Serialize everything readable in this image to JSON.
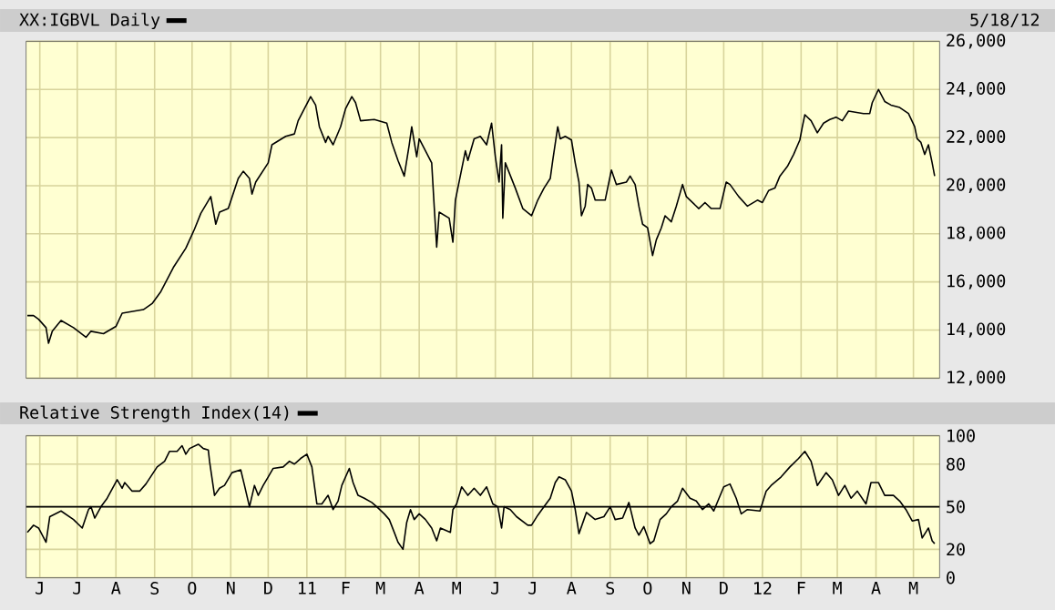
{
  "chart_data": [
    {
      "type": "line",
      "series": [
        {
          "name": "XX:IGBVL Daily",
          "color": "#000000",
          "x": [
            "2010-05-22",
            "2010-05-27",
            "2010-05-31",
            "2010-06-06",
            "2010-06-08",
            "2010-06-11",
            "2010-06-18",
            "2010-06-28",
            "2010-07-08",
            "2010-07-12",
            "2010-07-22",
            "2010-08-01",
            "2010-08-06",
            "2010-08-23",
            "2010-08-30",
            "2010-09-06",
            "2010-09-16",
            "2010-09-26",
            "2010-10-03",
            "2010-10-08",
            "2010-10-16",
            "2010-10-20",
            "2010-10-23",
            "2010-10-30",
            "2010-11-07",
            "2010-11-11",
            "2010-11-16",
            "2010-11-18",
            "2010-11-21",
            "2010-12-01",
            "2010-12-04",
            "2010-12-15",
            "2010-12-22",
            "2010-12-25",
            "2011-01-04",
            "2011-01-08",
            "2011-01-11",
            "2011-01-16",
            "2011-01-18",
            "2011-01-22",
            "2011-01-28",
            "2011-02-01",
            "2011-02-06",
            "2011-02-09",
            "2011-02-13",
            "2011-02-24",
            "2011-03-06",
            "2011-03-10",
            "2011-03-15",
            "2011-03-20",
            "2011-03-24",
            "2011-03-26",
            "2011-03-30",
            "2011-04-01",
            "2011-04-11",
            "2011-04-13",
            "2011-04-15",
            "2011-04-17",
            "2011-04-25",
            "2011-04-28",
            "2011-04-30",
            "2011-05-08",
            "2011-05-10",
            "2011-05-15",
            "2011-05-20",
            "2011-05-25",
            "2011-05-29",
            "2011-06-01",
            "2011-06-04",
            "2011-06-06",
            "2011-06-07",
            "2011-06-09",
            "2011-06-17",
            "2011-06-23",
            "2011-06-30",
            "2011-07-05",
            "2011-07-10",
            "2011-07-15",
            "2011-07-17",
            "2011-07-21",
            "2011-07-23",
            "2011-07-27",
            "2011-08-01",
            "2011-08-04",
            "2011-08-07",
            "2011-08-09",
            "2011-08-12",
            "2011-08-14",
            "2011-08-17",
            "2011-08-20",
            "2011-08-28",
            "2011-09-02",
            "2011-09-06",
            "2011-09-14",
            "2011-09-17",
            "2011-09-21",
            "2011-09-24",
            "2011-09-27",
            "2011-10-01",
            "2011-10-05",
            "2011-10-08",
            "2011-10-12",
            "2011-10-15",
            "2011-10-20",
            "2011-10-24",
            "2011-10-29",
            "2011-11-01",
            "2011-11-11",
            "2011-11-16",
            "2011-11-21",
            "2011-11-28",
            "2011-12-03",
            "2011-12-06",
            "2011-12-13",
            "2011-12-20",
            "2011-12-28",
            "2012-01-01",
            "2012-01-06",
            "2012-01-11",
            "2012-01-15",
            "2012-01-21",
            "2012-01-26",
            "2012-01-31",
            "2012-02-02",
            "2012-02-04",
            "2012-02-09",
            "2012-02-14",
            "2012-02-19",
            "2012-02-24",
            "2012-02-29",
            "2012-03-05",
            "2012-03-10",
            "2012-03-22",
            "2012-03-27",
            "2012-03-29",
            "2012-04-03",
            "2012-04-08",
            "2012-04-13",
            "2012-04-20",
            "2012-04-27",
            "2012-05-02",
            "2012-05-04",
            "2012-05-07",
            "2012-05-10",
            "2012-05-13",
            "2012-05-16",
            "2012-05-18"
          ],
          "values": [
            14600,
            14600,
            14450,
            14100,
            13450,
            13950,
            14400,
            14100,
            13700,
            13950,
            13850,
            14150,
            14700,
            14850,
            15100,
            15600,
            16600,
            17400,
            18200,
            18850,
            19550,
            18400,
            18900,
            19050,
            20300,
            20600,
            20300,
            19650,
            20150,
            20950,
            21700,
            22050,
            22150,
            22700,
            23700,
            23350,
            22450,
            21800,
            22050,
            21700,
            22450,
            23200,
            23700,
            23450,
            22700,
            22750,
            22600,
            21800,
            21050,
            20400,
            21700,
            22450,
            21200,
            21950,
            20950,
            19150,
            17450,
            18900,
            18650,
            17650,
            19400,
            21450,
            21050,
            21950,
            22050,
            21700,
            22600,
            21200,
            20150,
            21700,
            18650,
            20950,
            19900,
            19050,
            18750,
            19400,
            19900,
            20300,
            21050,
            22450,
            21950,
            22050,
            21900,
            20950,
            20150,
            18750,
            19150,
            20050,
            19900,
            19400,
            19400,
            20650,
            20050,
            20150,
            20400,
            20050,
            19150,
            18400,
            18250,
            17100,
            17750,
            18250,
            18750,
            18500,
            19150,
            20050,
            19550,
            19050,
            19300,
            19050,
            19050,
            20150,
            20050,
            19550,
            19150,
            19400,
            19300,
            19800,
            19900,
            20400,
            20800,
            21300,
            21900,
            22450,
            22950,
            22700,
            22200,
            22600,
            22750,
            22850,
            22700,
            23100,
            23000,
            23000,
            23450,
            24000,
            23500,
            23350,
            23250,
            23000,
            22450,
            21950,
            21800,
            21300,
            21700,
            20950,
            20400
          ]
        }
      ],
      "xlim": [
        "2010-05-21",
        "2012-05-22"
      ],
      "xticks": [
        {
          "value": "2010-06-01",
          "label": null
        },
        {
          "value": "2010-07-01",
          "label": null
        },
        {
          "value": "2010-08-01",
          "label": null
        },
        {
          "value": "2010-09-01",
          "label": null
        },
        {
          "value": "2010-10-01",
          "label": null
        },
        {
          "value": "2010-11-01",
          "label": null
        },
        {
          "value": "2010-12-01",
          "label": null
        },
        {
          "value": "2011-01-01",
          "label": null
        },
        {
          "value": "2011-02-01",
          "label": null
        },
        {
          "value": "2011-03-01",
          "label": null
        },
        {
          "value": "2011-04-01",
          "label": null
        },
        {
          "value": "2011-05-01",
          "label": null
        },
        {
          "value": "2011-06-01",
          "label": null
        },
        {
          "value": "2011-07-01",
          "label": null
        },
        {
          "value": "2011-08-01",
          "label": null
        },
        {
          "value": "2011-09-01",
          "label": null
        },
        {
          "value": "2011-10-01",
          "label": null
        },
        {
          "value": "2011-11-01",
          "label": null
        },
        {
          "value": "2011-12-01",
          "label": null
        },
        {
          "value": "2012-01-01",
          "label": null
        },
        {
          "value": "2012-02-01",
          "label": null
        },
        {
          "value": "2012-03-01",
          "label": null
        },
        {
          "value": "2012-04-01",
          "label": null
        },
        {
          "value": "2012-05-01",
          "label": null
        }
      ],
      "ylim": [
        12000,
        26000
      ],
      "yticks": [
        {
          "value": 12000,
          "label": "12,000"
        },
        {
          "value": 14000,
          "label": "14,000"
        },
        {
          "value": 16000,
          "label": "16,000"
        },
        {
          "value": 18000,
          "label": "18,000"
        },
        {
          "value": 20000,
          "label": "20,000"
        },
        {
          "value": 22000,
          "label": "22,000"
        },
        {
          "value": 24000,
          "label": "24,000"
        },
        {
          "value": 26000,
          "label": "26,000"
        }
      ],
      "grid": true,
      "legend": "top left",
      "tick_labels": "y",
      "annotations": [
        "5/18/12"
      ]
    },
    {
      "type": "line",
      "series": [
        {
          "name": "Relative Strength Index(14)",
          "color": "#000000",
          "x": [
            "2010-05-22",
            "2010-05-27",
            "2010-05-31",
            "2010-06-06",
            "2010-06-09",
            "2010-06-18",
            "2010-06-28",
            "2010-07-05",
            "2010-07-10",
            "2010-07-12",
            "2010-07-15",
            "2010-07-20",
            "2010-07-25",
            "2010-08-02",
            "2010-08-06",
            "2010-08-08",
            "2010-08-14",
            "2010-08-20",
            "2010-08-25",
            "2010-09-03",
            "2010-09-09",
            "2010-09-13",
            "2010-09-19",
            "2010-09-23",
            "2010-09-26",
            "2010-09-29",
            "2010-10-06",
            "2010-10-10",
            "2010-10-14",
            "2010-10-15",
            "2010-10-19",
            "2010-10-23",
            "2010-10-27",
            "2010-11-02",
            "2010-11-09",
            "2010-11-12",
            "2010-11-16",
            "2010-11-20",
            "2010-11-23",
            "2010-11-27",
            "2010-12-01",
            "2010-12-05",
            "2010-12-13",
            "2010-12-18",
            "2010-12-22",
            "2010-12-27",
            "2011-01-01",
            "2011-01-05",
            "2011-01-09",
            "2011-01-13",
            "2011-01-18",
            "2011-01-22",
            "2011-01-26",
            "2011-01-29",
            "2011-02-04",
            "2011-02-07",
            "2011-02-11",
            "2011-02-16",
            "2011-02-22",
            "2011-02-26",
            "2011-03-04",
            "2011-03-08",
            "2011-03-12",
            "2011-03-15",
            "2011-03-19",
            "2011-03-22",
            "2011-03-25",
            "2011-03-28",
            "2011-04-01",
            "2011-04-06",
            "2011-04-11",
            "2011-04-15",
            "2011-04-18",
            "2011-04-26",
            "2011-04-28",
            "2011-05-01",
            "2011-05-05",
            "2011-05-10",
            "2011-05-15",
            "2011-05-20",
            "2011-05-25",
            "2011-05-30",
            "2011-06-03",
            "2011-06-06",
            "2011-06-08",
            "2011-06-13",
            "2011-06-18",
            "2011-06-27",
            "2011-06-30",
            "2011-07-05",
            "2011-07-10",
            "2011-07-15",
            "2011-07-19",
            "2011-07-22",
            "2011-07-27",
            "2011-08-01",
            "2011-08-04",
            "2011-08-07",
            "2011-08-11",
            "2011-08-13",
            "2011-08-20",
            "2011-08-27",
            "2011-09-01",
            "2011-09-05",
            "2011-09-11",
            "2011-09-16",
            "2011-09-21",
            "2011-09-24",
            "2011-09-28",
            "2011-10-03",
            "2011-10-06",
            "2011-10-11",
            "2011-10-16",
            "2011-10-20",
            "2011-10-25",
            "2011-10-29",
            "2011-11-04",
            "2011-11-09",
            "2011-11-14",
            "2011-11-19",
            "2011-11-23",
            "2011-12-01",
            "2011-12-06",
            "2011-12-11",
            "2011-12-15",
            "2011-12-20",
            "2011-12-30",
            "2012-01-04",
            "2012-01-08",
            "2012-01-16",
            "2012-01-23",
            "2012-01-30",
            "2012-02-04",
            "2012-02-09",
            "2012-02-14",
            "2012-02-21",
            "2012-02-26",
            "2012-03-02",
            "2012-03-07",
            "2012-03-12",
            "2012-03-17",
            "2012-03-24",
            "2012-03-28",
            "2012-04-03",
            "2012-04-08",
            "2012-04-15",
            "2012-04-20",
            "2012-04-25",
            "2012-04-30",
            "2012-05-05",
            "2012-05-08",
            "2012-05-13",
            "2012-05-16",
            "2012-05-18"
          ],
          "values": [
            32,
            37,
            35,
            25,
            43,
            47,
            41,
            35,
            48,
            50,
            42,
            50,
            56,
            69,
            63,
            67,
            61,
            61,
            66,
            78,
            82,
            89,
            89,
            93,
            87,
            91,
            94,
            91,
            90,
            82,
            58,
            63,
            65,
            74,
            76,
            65,
            50,
            65,
            58,
            65,
            71,
            77,
            78,
            82,
            80,
            84,
            87,
            78,
            52,
            52,
            58,
            48,
            54,
            65,
            77,
            67,
            58,
            56,
            53,
            50,
            45,
            41,
            32,
            25,
            20,
            39,
            48,
            41,
            45,
            41,
            35,
            26,
            35,
            32,
            48,
            52,
            64,
            58,
            63,
            58,
            64,
            52,
            50,
            35,
            50,
            48,
            43,
            37,
            37,
            44,
            50,
            56,
            67,
            71,
            69,
            61,
            48,
            31,
            41,
            46,
            41,
            43,
            50,
            41,
            42,
            53,
            35,
            30,
            36,
            24,
            26,
            41,
            45,
            50,
            54,
            63,
            56,
            54,
            48,
            52,
            47,
            64,
            66,
            56,
            45,
            48,
            47,
            61,
            65,
            71,
            78,
            84,
            89,
            82,
            65,
            74,
            69,
            58,
            65,
            56,
            61,
            52,
            67,
            67,
            58,
            58,
            54,
            48,
            40,
            41,
            28,
            35,
            26,
            24
          ]
        }
      ],
      "xlim": [
        "2010-05-21",
        "2012-05-22"
      ],
      "xticks": [
        {
          "value": "2010-06-01",
          "label": "J"
        },
        {
          "value": "2010-07-01",
          "label": "J"
        },
        {
          "value": "2010-08-01",
          "label": "A"
        },
        {
          "value": "2010-09-01",
          "label": "S"
        },
        {
          "value": "2010-10-01",
          "label": "O"
        },
        {
          "value": "2010-11-01",
          "label": "N"
        },
        {
          "value": "2010-12-01",
          "label": "D"
        },
        {
          "value": "2011-01-01",
          "label": "11"
        },
        {
          "value": "2011-02-01",
          "label": "F"
        },
        {
          "value": "2011-03-01",
          "label": "M"
        },
        {
          "value": "2011-04-01",
          "label": "A"
        },
        {
          "value": "2011-05-01",
          "label": "M"
        },
        {
          "value": "2011-06-01",
          "label": "J"
        },
        {
          "value": "2011-07-01",
          "label": "J"
        },
        {
          "value": "2011-08-01",
          "label": "A"
        },
        {
          "value": "2011-09-01",
          "label": "S"
        },
        {
          "value": "2011-10-01",
          "label": "O"
        },
        {
          "value": "2011-11-01",
          "label": "N"
        },
        {
          "value": "2011-12-01",
          "label": "D"
        },
        {
          "value": "2012-01-01",
          "label": "12"
        },
        {
          "value": "2012-02-01",
          "label": "F"
        },
        {
          "value": "2012-03-01",
          "label": "M"
        },
        {
          "value": "2012-04-01",
          "label": "A"
        },
        {
          "value": "2012-05-01",
          "label": "M"
        }
      ],
      "ylim": [
        0,
        100
      ],
      "yticks": [
        0,
        20,
        50,
        80,
        100
      ],
      "grid": true,
      "legend": "top left",
      "ref_lines": [
        {
          "axis": "y",
          "value": 50,
          "color": "#000000"
        }
      ]
    }
  ]
}
